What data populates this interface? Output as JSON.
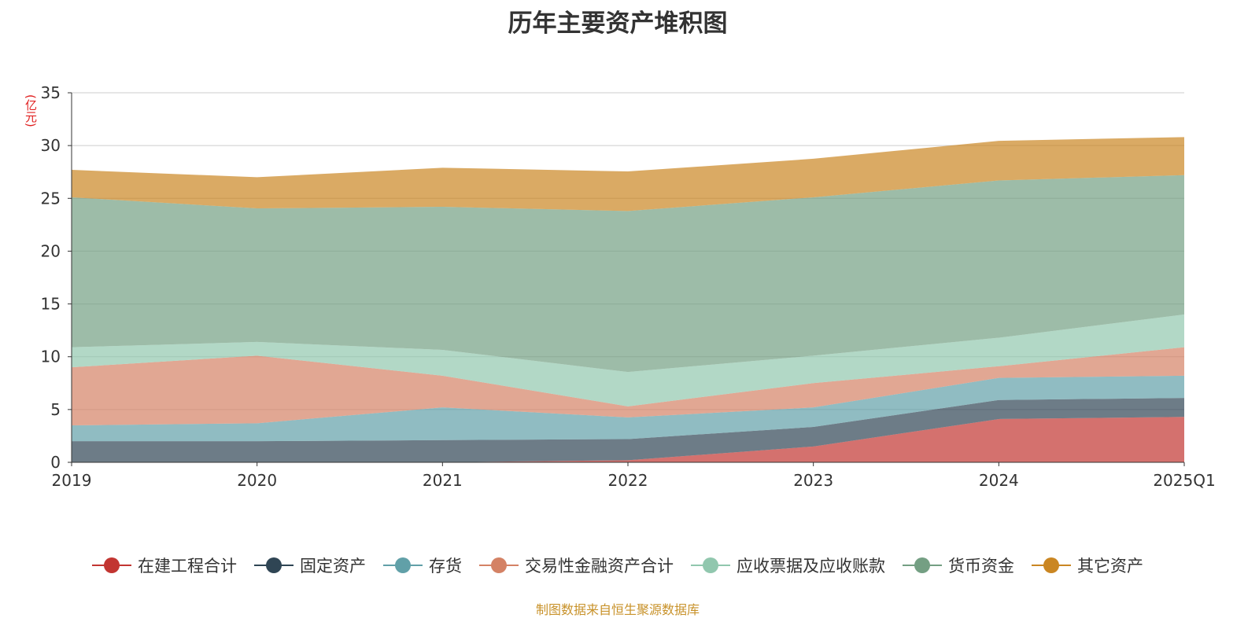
{
  "chart_data": {
    "type": "area",
    "stacked": true,
    "title": "历年主要资产堆积图",
    "ylabel": "(亿元)",
    "xlabel": "",
    "ylim": [
      0,
      35
    ],
    "yticks": [
      0,
      5,
      10,
      15,
      20,
      25,
      30,
      35
    ],
    "grid": true,
    "legend_position": "bottom",
    "categories": [
      "2019",
      "2020",
      "2021",
      "2022",
      "2023",
      "2024",
      "2025Q1"
    ],
    "series": [
      {
        "name": "在建工程合计",
        "color": "#c23531",
        "values": [
          0,
          0,
          0,
          0.2,
          1.5,
          4.1,
          4.3
        ]
      },
      {
        "name": "固定资产",
        "color": "#2f4554",
        "values": [
          2.0,
          2.0,
          2.1,
          2.0,
          1.85,
          1.8,
          1.8
        ]
      },
      {
        "name": "存货",
        "color": "#61a0a8",
        "values": [
          1.5,
          1.7,
          3.1,
          2.05,
          1.85,
          2.1,
          2.1
        ]
      },
      {
        "name": "交易性金融资产合计",
        "color": "#d48265",
        "values": [
          5.5,
          6.4,
          3.0,
          1.05,
          2.3,
          1.1,
          2.7
        ]
      },
      {
        "name": "应收票据及应收账款",
        "color": "#91c7ae",
        "values": [
          1.9,
          1.3,
          2.45,
          3.25,
          2.6,
          2.7,
          3.1
        ]
      },
      {
        "name": "货币资金",
        "color": "#749f83",
        "values": [
          14.2,
          12.65,
          13.55,
          15.25,
          15.0,
          14.9,
          13.2
        ]
      },
      {
        "name": "其它资产",
        "color": "#ca8622",
        "values": [
          2.6,
          2.95,
          3.7,
          3.75,
          3.65,
          3.75,
          3.6
        ]
      }
    ]
  },
  "footer": "制图数据来自恒生聚源数据库"
}
